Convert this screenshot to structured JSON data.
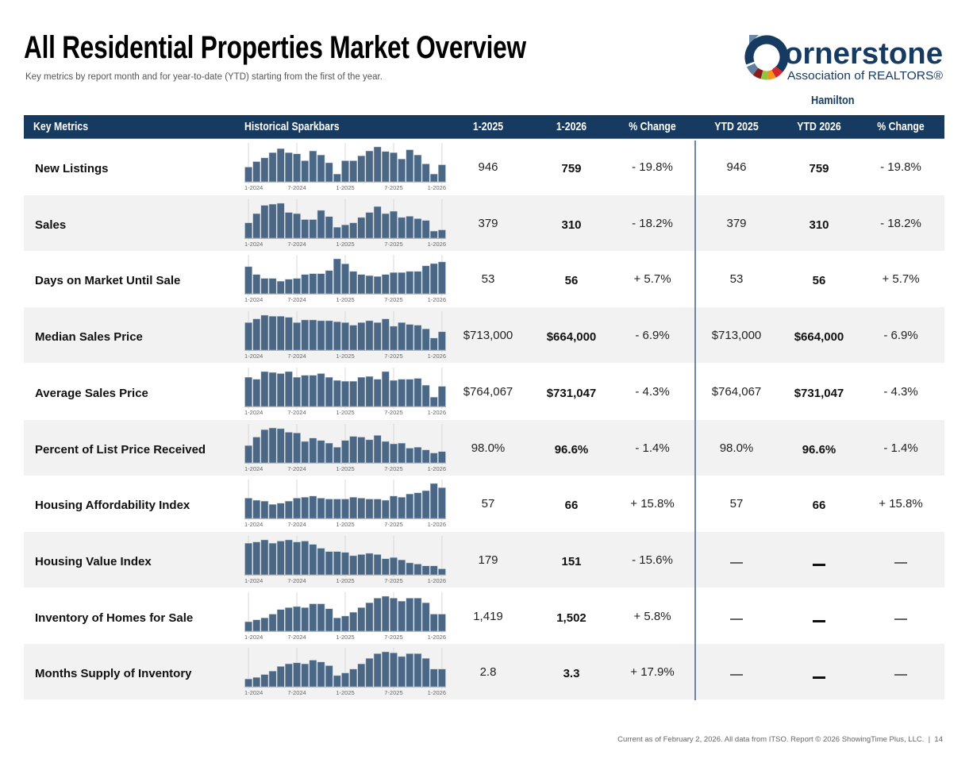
{
  "header": {
    "title": "All Residential Properties Market Overview",
    "subtitle": "Key metrics by report month and for year-to-date (YTD) starting from the first of the year.",
    "logo_text_main": "ornerstone",
    "logo_text_sub": "Association of REALTORS®",
    "region": "Hamilton"
  },
  "table": {
    "columns": [
      "Key Metrics",
      "Historical Sparkbars",
      "1-2025",
      "1-2026",
      "% Change",
      "YTD 2025",
      "YTD 2026",
      "% Change"
    ],
    "spark_axis_labels": [
      "1-2024",
      "7-2024",
      "1-2025",
      "7-2025",
      "1-2026"
    ],
    "bar_color": "#4a6785",
    "header_color": "#173a61",
    "rows": [
      {
        "metric": "New Listings",
        "m2025": "946",
        "m2026": "759",
        "mchg": "- 19.8%",
        "y2025": "946",
        "y2026": "759",
        "ychg": "- 19.8%",
        "spark": [
          51,
          70,
          83,
          101,
          115,
          101,
          97,
          73,
          107,
          93,
          66,
          27,
          73,
          73,
          90,
          107,
          121,
          105,
          101,
          79,
          111,
          93,
          62,
          27,
          59
        ]
      },
      {
        "metric": "Sales",
        "m2025": "379",
        "m2026": "310",
        "mchg": "- 18.2%",
        "y2025": "379",
        "y2026": "310",
        "ychg": "- 18.2%",
        "spark": [
          52,
          83,
          111,
          115,
          118,
          87,
          83,
          63,
          63,
          94,
          73,
          37,
          45,
          52,
          70,
          87,
          107,
          83,
          91,
          70,
          74,
          66,
          60,
          24,
          28
        ]
      },
      {
        "metric": "Days on Market Until Sale",
        "m2025": "53",
        "m2026": "56",
        "mchg": "+ 5.7%",
        "y2025": "53",
        "y2026": "56",
        "ychg": "+ 5.7%",
        "spark": [
          97,
          69,
          55,
          55,
          45,
          52,
          55,
          69,
          72,
          72,
          83,
          125,
          107,
          80,
          69,
          65,
          62,
          69,
          76,
          76,
          80,
          80,
          100,
          108,
          114
        ]
      },
      {
        "metric": "Median Sales Price",
        "m2025": "$713,000",
        "m2026": "$664,000",
        "mchg": "- 6.9%",
        "y2025": "$713,000",
        "y2026": "$664,000",
        "ychg": "- 6.9%",
        "spark": [
          105,
          119,
          133,
          129,
          129,
          125,
          105,
          115,
          115,
          112,
          112,
          108,
          105,
          95,
          105,
          112,
          105,
          119,
          91,
          105,
          98,
          95,
          81,
          46,
          70
        ]
      },
      {
        "metric": "Average Sales Price",
        "m2025": "$764,067",
        "m2026": "$731,047",
        "mchg": "- 4.3%",
        "y2025": "$764,067",
        "y2026": "$731,047",
        "ychg": "- 4.3%",
        "spark": [
          103,
          96,
          123,
          120,
          116,
          123,
          103,
          110,
          110,
          116,
          103,
          92,
          89,
          89,
          103,
          106,
          96,
          123,
          92,
          96,
          96,
          99,
          75,
          33,
          71
        ]
      },
      {
        "metric": "Percent of List Price Received",
        "m2025": "98.0%",
        "m2026": "96.6%",
        "mchg": "- 1.4%",
        "y2025": "98.0%",
        "y2026": "96.6%",
        "ychg": "- 1.4%",
        "spark": [
          72,
          107,
          138,
          145,
          142,
          127,
          124,
          89,
          103,
          93,
          82,
          65,
          93,
          110,
          107,
          96,
          114,
          89,
          79,
          82,
          61,
          65,
          54,
          41,
          47
        ]
      },
      {
        "metric": "Housing Affordability Index",
        "m2025": "57",
        "m2026": "66",
        "mchg": "+ 15.8%",
        "y2025": "57",
        "y2026": "66",
        "ychg": "+ 15.8%",
        "spark": [
          68,
          61,
          58,
          47,
          51,
          58,
          68,
          71,
          75,
          68,
          65,
          65,
          65,
          71,
          68,
          65,
          65,
          61,
          75,
          71,
          82,
          86,
          93,
          117,
          103
        ]
      },
      {
        "metric": "Housing Value Index",
        "m2025": "179",
        "m2026": "151",
        "mchg": "- 15.6%",
        "y2025": "—",
        "y2026": "—",
        "ychg": "—",
        "spark": [
          106,
          110,
          117,
          106,
          113,
          117,
          110,
          113,
          102,
          89,
          78,
          78,
          75,
          64,
          68,
          72,
          68,
          54,
          58,
          50,
          40,
          36,
          30,
          30,
          20
        ]
      },
      {
        "metric": "Inventory of Homes for Sale",
        "m2025": "1,419",
        "m2026": "1,502",
        "mchg": "+ 5.8%",
        "y2025": "—",
        "y2026": "—",
        "ychg": "—",
        "spark": [
          35,
          42,
          49,
          63,
          80,
          87,
          91,
          87,
          101,
          101,
          83,
          49,
          56,
          70,
          87,
          105,
          122,
          129,
          122,
          111,
          122,
          122,
          105,
          63,
          63
        ]
      },
      {
        "metric": "Months Supply of Inventory",
        "m2025": "2.8",
        "m2026": "3.3",
        "mchg": "+ 17.9%",
        "y2025": "—",
        "y2026": "—",
        "ychg": "—",
        "spark": [
          30,
          36,
          47,
          60,
          78,
          88,
          92,
          88,
          102,
          95,
          81,
          43,
          53,
          68,
          88,
          109,
          127,
          134,
          130,
          116,
          127,
          127,
          109,
          68,
          68
        ]
      }
    ]
  },
  "footer": {
    "text": "Current as of February 2, 2026. All data from ITSO. Report © 2026 ShowingTime Plus, LLC.",
    "page": "14"
  }
}
